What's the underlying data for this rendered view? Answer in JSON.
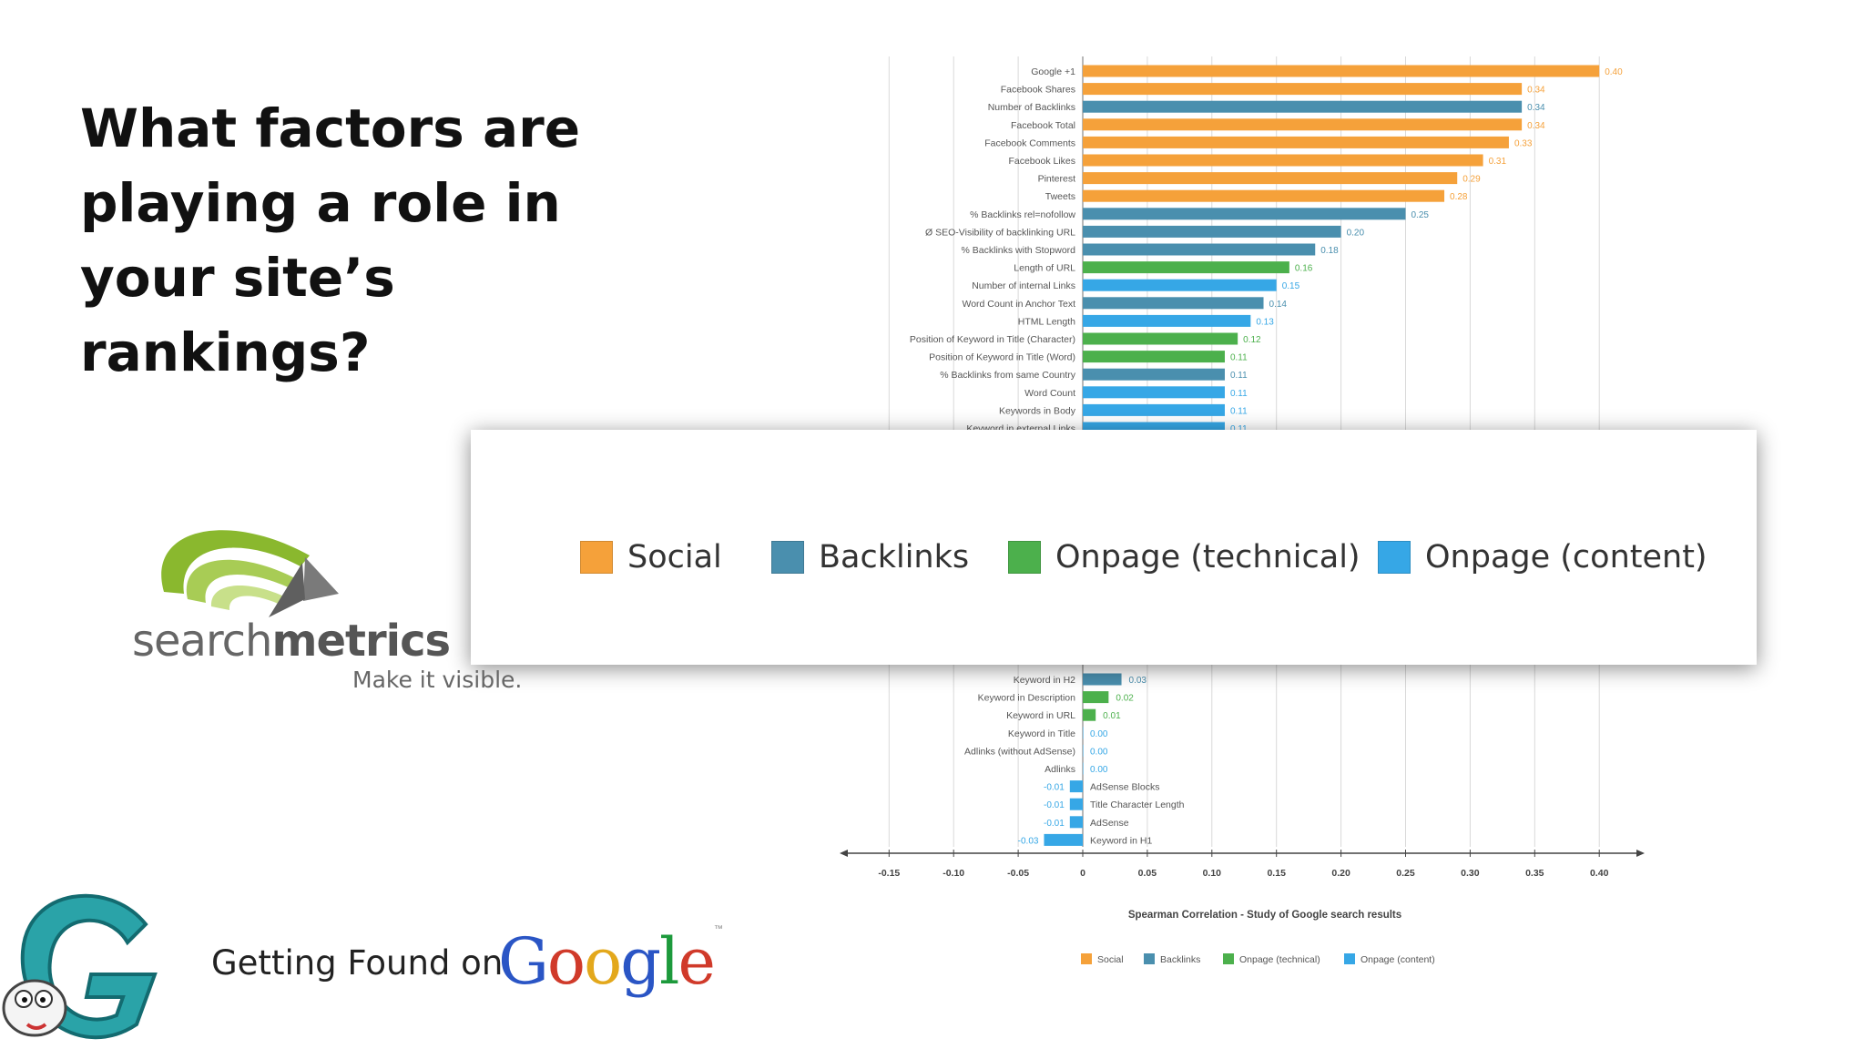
{
  "slide": {
    "title_lines": [
      "What factors are",
      "playing a role in",
      "your site’s",
      "rankings?"
    ],
    "logo": {
      "word_plain": "search",
      "word_bold": "metrics",
      "tagline": "Make it visible."
    },
    "footer": {
      "text": "Getting Found on",
      "google_letters": [
        "G",
        "o",
        "o",
        "g",
        "l",
        "e"
      ],
      "google_colors": [
        "#2a55c5",
        "#d03a2a",
        "#e3a81c",
        "#2a55c5",
        "#1d9a3c",
        "#d03a2a"
      ],
      "trademark": "™"
    }
  },
  "legend_zoom": [
    {
      "label": "Social",
      "color": "#f5a13a"
    },
    {
      "label": "Backlinks",
      "color": "#4a8fae"
    },
    {
      "label": "Onpage (technical)",
      "color": "#4cb04c"
    },
    {
      "label": "Onpage (content)",
      "color": "#36a7e6"
    }
  ],
  "chart_data": {
    "type": "bar",
    "orientation": "horizontal",
    "title": "Spearman Correlation - Study of Google search results",
    "xlim": [
      -0.15,
      0.4
    ],
    "xticks": [
      "-0.15",
      "-0.10",
      "-0.05",
      "0",
      "0.05",
      "0.10",
      "0.15",
      "0.20",
      "0.25",
      "0.30",
      "0.35",
      "0.40"
    ],
    "grid": true,
    "legend_position": "bottom",
    "series": [
      {
        "name": "Social",
        "color": "#f5a13a"
      },
      {
        "name": "Backlinks",
        "color": "#4a8fae"
      },
      {
        "name": "Onpage (technical)",
        "color": "#4cb04c"
      },
      {
        "name": "Onpage (content)",
        "color": "#36a7e6"
      }
    ],
    "visible_top": [
      {
        "label": "Google +1",
        "value": 0.4,
        "value_label": "0.40",
        "series": "Social"
      },
      {
        "label": "Facebook Shares",
        "value": 0.34,
        "value_label": "0.34",
        "series": "Social"
      },
      {
        "label": "Number of Backlinks",
        "value": 0.34,
        "value_label": "0.34",
        "series": "Backlinks"
      },
      {
        "label": "Facebook Total",
        "value": 0.34,
        "value_label": "0.34",
        "series": "Social"
      },
      {
        "label": "Facebook Comments",
        "value": 0.33,
        "value_label": "0.33",
        "series": "Social"
      },
      {
        "label": "Facebook Likes",
        "value": 0.31,
        "value_label": "0.31",
        "series": "Social"
      },
      {
        "label": "Pinterest",
        "value": 0.29,
        "value_label": "0.29",
        "series": "Social"
      },
      {
        "label": "Tweets",
        "value": 0.28,
        "value_label": "0.28",
        "series": "Social"
      },
      {
        "label": "% Backlinks rel=nofollow",
        "value": 0.25,
        "value_label": "0.25",
        "series": "Backlinks"
      },
      {
        "label": "Ø SEO-Visibility of backlinking URL",
        "value": 0.2,
        "value_label": "0.20",
        "series": "Backlinks"
      },
      {
        "label": "% Backlinks with Stopword",
        "value": 0.18,
        "value_label": "0.18",
        "series": "Backlinks"
      },
      {
        "label": "Length of URL",
        "value": 0.16,
        "value_label": "0.16",
        "series": "Onpage (technical)"
      },
      {
        "label": "Number of internal Links",
        "value": 0.15,
        "value_label": "0.15",
        "series": "Onpage (content)"
      },
      {
        "label": "Word Count in Anchor Text",
        "value": 0.14,
        "value_label": "0.14",
        "series": "Backlinks"
      },
      {
        "label": "HTML Length",
        "value": 0.13,
        "value_label": "0.13",
        "series": "Onpage (content)"
      },
      {
        "label": "Position of Keyword in Title (Character)",
        "value": 0.12,
        "value_label": "0.12",
        "series": "Onpage (technical)"
      },
      {
        "label": "Position of Keyword in Title (Word)",
        "value": 0.11,
        "value_label": "0.11",
        "series": "Onpage (technical)"
      },
      {
        "label": "% Backlinks from same Country",
        "value": 0.11,
        "value_label": "0.11",
        "series": "Backlinks"
      },
      {
        "label": "Word Count",
        "value": 0.11,
        "value_label": "0.11",
        "series": "Onpage (content)"
      },
      {
        "label": "Keywords in Body",
        "value": 0.11,
        "value_label": "0.11",
        "series": "Onpage (content)"
      },
      {
        "label": "Keyword in external Links",
        "value": 0.11,
        "value_label": "0.11",
        "series": "Onpage (content)"
      }
    ],
    "visible_bottom": [
      {
        "label": "Keyword in H2",
        "value": 0.03,
        "value_label": "0.03",
        "series": "Backlinks"
      },
      {
        "label": "Keyword in Description",
        "value": 0.02,
        "value_label": "0.02",
        "series": "Onpage (technical)"
      },
      {
        "label": "Keyword in URL",
        "value": 0.01,
        "value_label": "0.01",
        "series": "Onpage (technical)"
      },
      {
        "label": "Keyword in Title",
        "value": 0.0,
        "value_label": "0.00",
        "series": "Onpage (content)"
      },
      {
        "label": "Adlinks (without AdSense)",
        "value": 0.0,
        "value_label": "0.00",
        "series": "Onpage (content)"
      },
      {
        "label": "Adlinks",
        "value": 0.0,
        "value_label": "0.00",
        "series": "Onpage (content)"
      },
      {
        "label": "AdSense Blocks",
        "value": -0.01,
        "value_label": "-0.01",
        "series": "Onpage (content)"
      },
      {
        "label": "Title Character Length",
        "value": -0.01,
        "value_label": "-0.01",
        "series": "Onpage (content)"
      },
      {
        "label": "AdSense",
        "value": -0.01,
        "value_label": "-0.01",
        "series": "Onpage (content)"
      },
      {
        "label": "Keyword in H1",
        "value": -0.03,
        "value_label": "-0.03",
        "series": "Onpage (content)"
      }
    ]
  }
}
